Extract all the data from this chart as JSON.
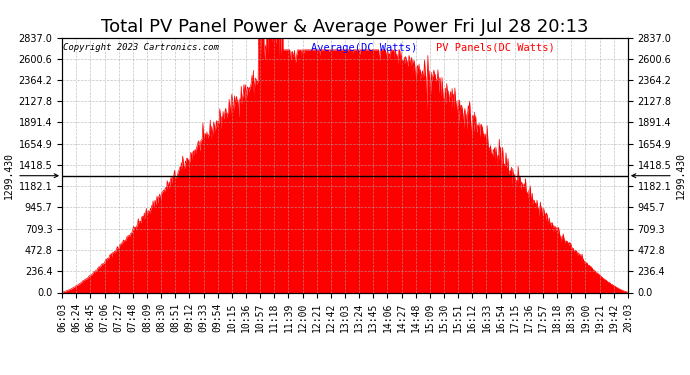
{
  "title": "Total PV Panel Power & Average Power Fri Jul 28 20:13",
  "copyright": "Copyright 2023 Cartronics.com",
  "legend_avg": "Average(DC Watts)",
  "legend_pv": "PV Panels(DC Watts)",
  "avg_value": 1299.43,
  "y_max": 2837.0,
  "y_min": 0.0,
  "y_right_ticks": [
    0.0,
    236.4,
    472.8,
    709.3,
    945.7,
    1182.1,
    1418.5,
    1654.9,
    1891.4,
    2127.8,
    2364.2,
    2600.6,
    2837.0
  ],
  "y_left_label": "1299.430",
  "y_right_label": "1299.430",
  "background_color": "#ffffff",
  "fill_color": "#ff0000",
  "avg_line_color": "#0000ff",
  "grid_color": "#aaaaaa",
  "title_fontsize": 13,
  "tick_fontsize": 7,
  "x_tick_labels": [
    "06:03",
    "06:24",
    "06:45",
    "07:06",
    "07:27",
    "07:48",
    "08:09",
    "08:30",
    "08:51",
    "09:12",
    "09:33",
    "09:54",
    "10:15",
    "10:36",
    "10:57",
    "11:18",
    "11:39",
    "12:00",
    "12:21",
    "12:42",
    "13:03",
    "13:24",
    "13:45",
    "14:06",
    "14:27",
    "14:48",
    "15:09",
    "15:30",
    "15:51",
    "16:12",
    "16:33",
    "16:54",
    "17:15",
    "17:36",
    "17:57",
    "18:18",
    "18:39",
    "19:00",
    "19:21",
    "19:42",
    "20:03"
  ]
}
